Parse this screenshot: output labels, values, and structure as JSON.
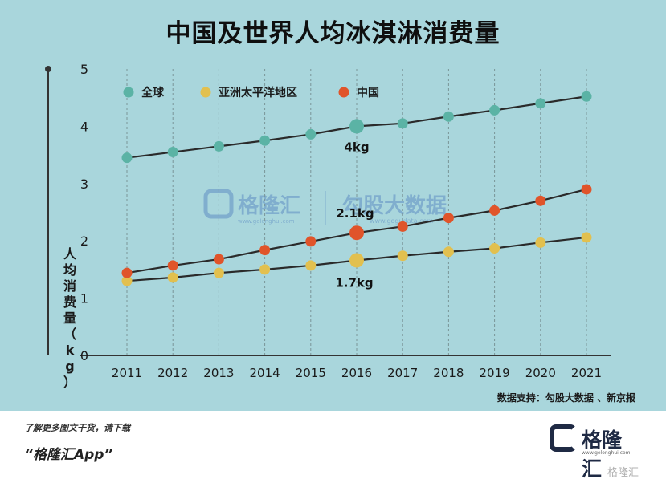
{
  "title": "中国及世界人均冰淇淋消费量",
  "colors": {
    "background": "#a9d6dc",
    "global": "#5bb3a5",
    "asia_pacific": "#e2c04f",
    "china": "#e0542a",
    "line": "#2a2a2a"
  },
  "legend": {
    "global": "全球",
    "asia_pacific": "亚洲太平洋地区",
    "china": "中国"
  },
  "watermark": {
    "name": "格隆汇",
    "url": "www.gelonghui.com",
    "name2": "勾股大数据",
    "url2": "www.gogudata.com"
  },
  "source": "数据支持：勾股大数据 、新京报",
  "footer": {
    "hint": "了解更多图文干货，请下载",
    "app": "“格隆汇App”"
  },
  "brand": {
    "name": "格隆汇",
    "url": "www.gelonghui.com",
    "corner": "格隆汇"
  },
  "chart_data": {
    "type": "line",
    "title": "中国及世界人均冰淇淋消费量",
    "xlabel": "",
    "ylabel": "人均消费量（kg）",
    "x": [
      "2011",
      "2012",
      "2013",
      "2014",
      "2015",
      "2016",
      "2017",
      "2018",
      "2019",
      "2020",
      "2021"
    ],
    "ylim": [
      0,
      5
    ],
    "yticks": [
      "0",
      "1",
      "2",
      "3",
      "4",
      "5"
    ],
    "grid": "vertical dashed",
    "legend_position": "top-left",
    "series": [
      {
        "name": "全球",
        "color": "#5bb3a5",
        "values": [
          3.45,
          3.55,
          3.65,
          3.75,
          3.86,
          4.0,
          4.05,
          4.17,
          4.28,
          4.4,
          4.52
        ]
      },
      {
        "name": "亚洲太平洋地区",
        "color": "#e2c04f",
        "values": [
          1.3,
          1.36,
          1.44,
          1.5,
          1.57,
          1.66,
          1.74,
          1.81,
          1.87,
          1.97,
          2.06
        ]
      },
      {
        "name": "中国",
        "color": "#e0542a",
        "values": [
          1.44,
          1.57,
          1.68,
          1.84,
          1.99,
          2.14,
          2.25,
          2.4,
          2.53,
          2.7,
          2.9
        ]
      }
    ],
    "annotations": [
      {
        "text": "4kg",
        "x": "2016",
        "series": 0
      },
      {
        "text": "2.1kg",
        "x": "2016",
        "series": 2
      },
      {
        "text": "1.7kg",
        "x": "2016",
        "series": 1
      }
    ]
  }
}
